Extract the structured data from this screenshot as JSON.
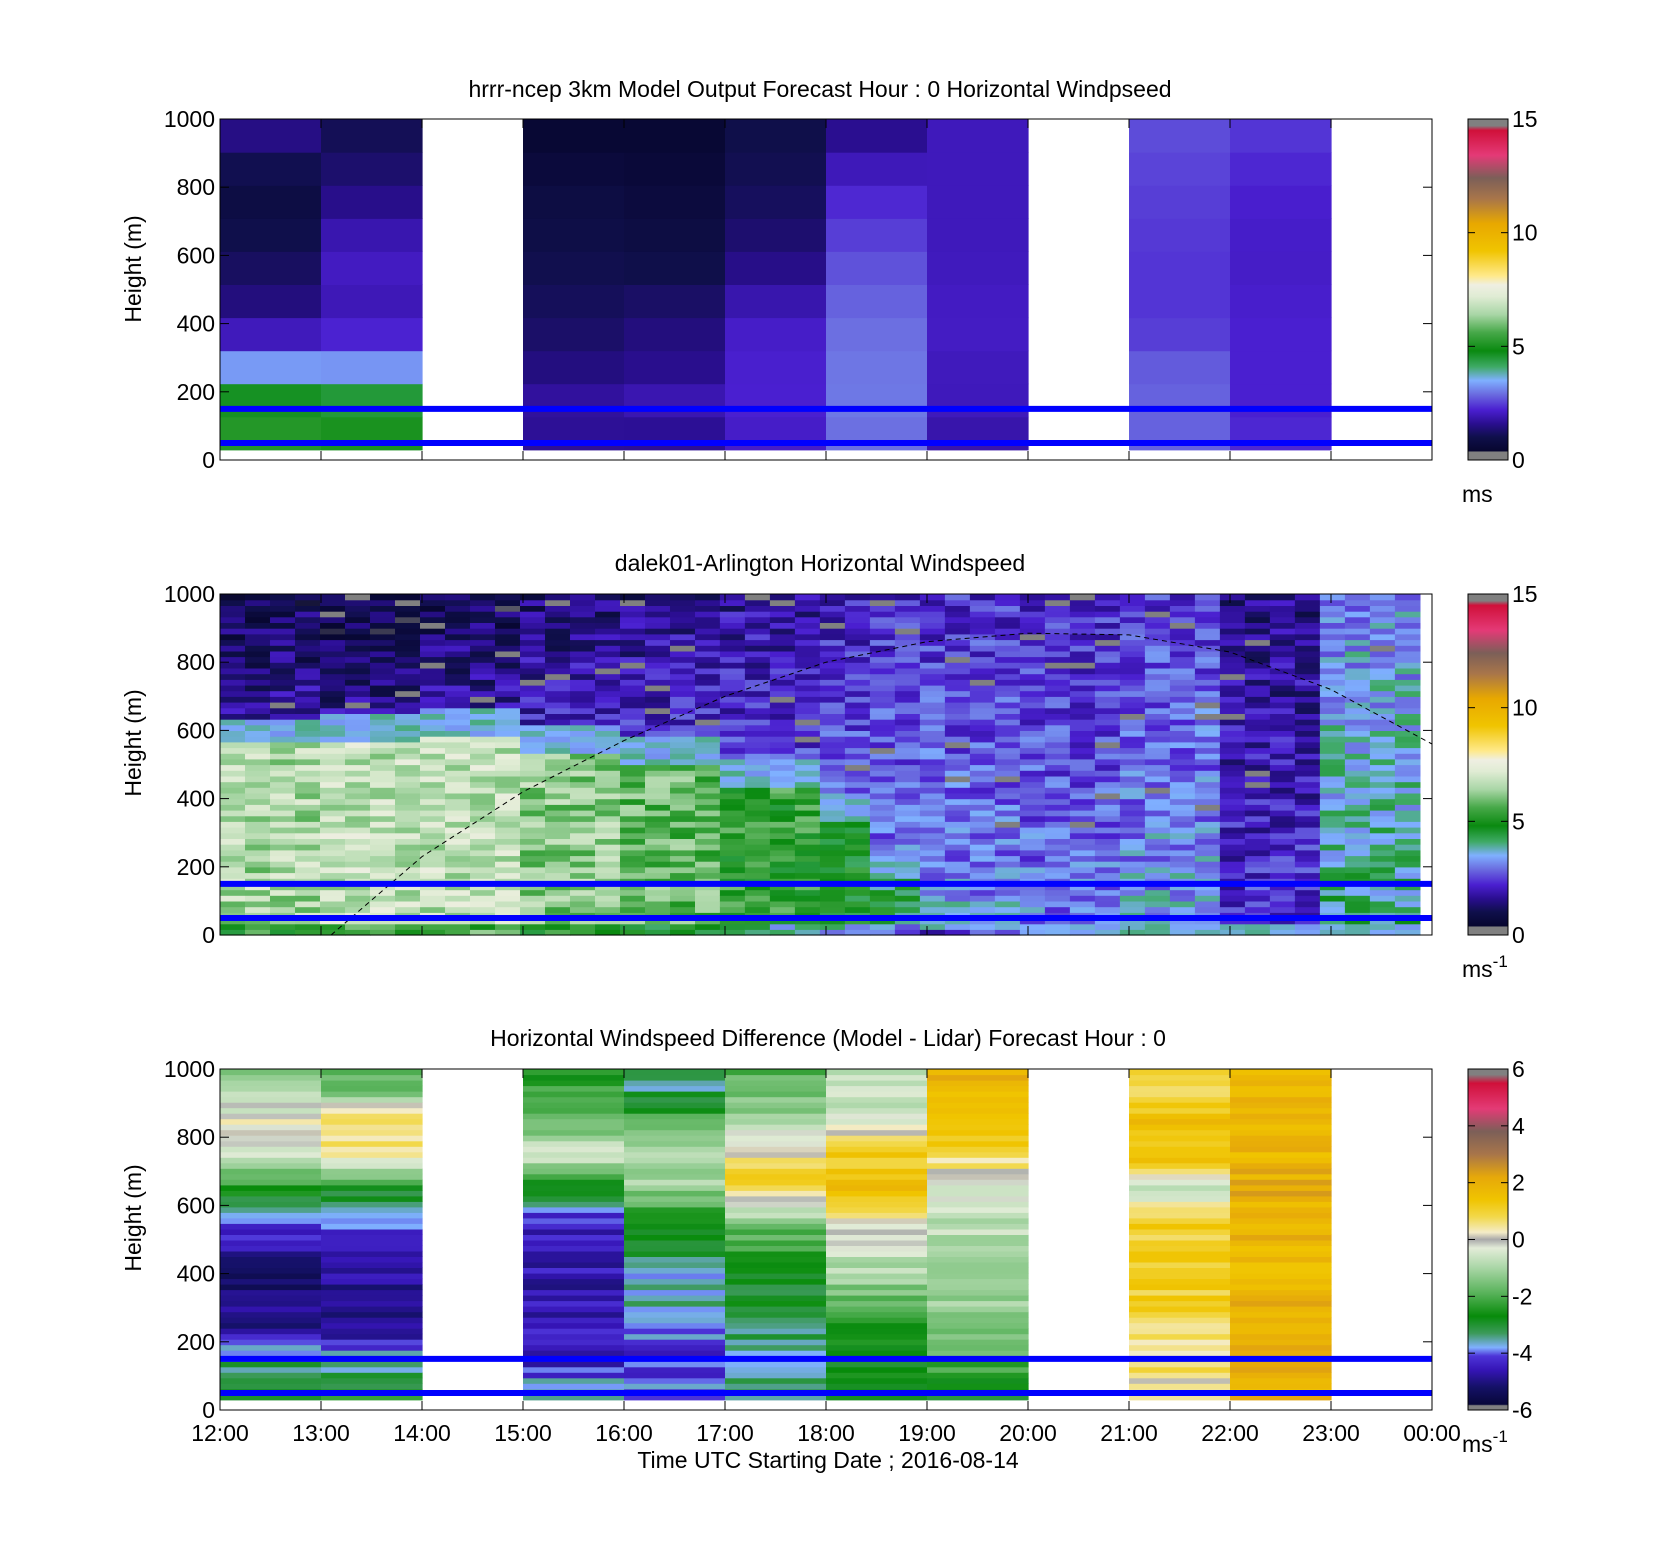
{
  "figure": {
    "xlabel": "Time UTC  Starting Date ; 2016-08-14",
    "xticks": [
      "12:00",
      "13:00",
      "14:00",
      "15:00",
      "16:00",
      "17:00",
      "18:00",
      "19:00",
      "20:00",
      "21:00",
      "22:00",
      "23:00",
      "00:00"
    ],
    "guide_line_color": "#0000ff"
  },
  "chart_data": [
    {
      "id": "model",
      "type": "heatmap",
      "title": "hrrr-ncep 3km Model Output   Forecast Hour : 0 Horizontal Windpseed",
      "ylabel": "Height (m)",
      "yticks": [
        0,
        200,
        400,
        600,
        800,
        1000
      ],
      "ylim": [
        0,
        1000
      ],
      "xlim_hours": [
        12,
        24
      ],
      "colorbar": {
        "min": 0,
        "max": 15,
        "ticks": [
          "0",
          "5",
          "10",
          "15"
        ],
        "unit": "ms"
      },
      "reference_heights_m": [
        150,
        50
      ],
      "height_levels_m": [
        50,
        150,
        250,
        400,
        600,
        800,
        950
      ],
      "columns": [
        {
          "hour": "12:00",
          "windspeed": [
            5.2,
            5.0,
            3.6,
            1.6,
            1.1,
            0.8,
            1.5
          ]
        },
        {
          "hour": "13:00",
          "windspeed": [
            5.1,
            4.8,
            3.5,
            1.9,
            2.1,
            1.4,
            1.1
          ]
        },
        {
          "hour": "14:00",
          "windspeed": null
        },
        {
          "hour": "15:00",
          "windspeed": [
            1.6,
            1.8,
            1.5,
            1.2,
            1.0,
            0.8,
            0.5
          ]
        },
        {
          "hour": "16:00",
          "windspeed": [
            1.5,
            2.0,
            1.6,
            1.4,
            0.9,
            0.7,
            0.5
          ]
        },
        {
          "hour": "17:00",
          "windspeed": [
            2.1,
            2.2,
            2.2,
            2.1,
            1.4,
            1.1,
            1.0
          ]
        },
        {
          "hour": "18:00",
          "windspeed": [
            2.9,
            3.0,
            3.0,
            2.9,
            2.6,
            2.2,
            1.6
          ]
        },
        {
          "hour": "19:00",
          "windspeed": [
            1.8,
            2.0,
            2.0,
            2.1,
            2.0,
            2.0,
            2.0
          ]
        },
        {
          "hour": "20:00",
          "windspeed": null
        },
        {
          "hour": "21:00",
          "windspeed": [
            2.8,
            2.8,
            2.8,
            2.4,
            2.4,
            2.5,
            2.6
          ]
        },
        {
          "hour": "22:00",
          "windspeed": [
            2.3,
            2.2,
            2.2,
            2.2,
            2.1,
            2.2,
            2.4
          ]
        },
        {
          "hour": "23:00",
          "windspeed": null
        }
      ]
    },
    {
      "id": "lidar",
      "type": "heatmap",
      "title": "dalek01-Arlington  Horizontal Windspeed",
      "ylabel": "Height (m)",
      "yticks": [
        0,
        200,
        400,
        600,
        800,
        1000
      ],
      "ylim": [
        0,
        1000
      ],
      "xlim_hours": [
        12,
        24
      ],
      "colorbar": {
        "min": 0,
        "max": 15,
        "ticks": [
          "0",
          "5",
          "10",
          "15"
        ],
        "unit": "ms",
        "unit_sup": "-1"
      },
      "reference_heights_m": [
        150,
        50
      ],
      "boundary_layer_curve": {
        "hours": [
          13.1,
          14,
          15,
          16,
          17,
          18,
          19,
          20,
          21,
          22,
          23,
          24
        ],
        "height_m": [
          0,
          230,
          420,
          570,
          700,
          800,
          860,
          885,
          880,
          830,
          720,
          560
        ]
      },
      "profile_stats": [
        {
          "start_hour": 12.0,
          "top_m": 600,
          "low_speed": 6.5,
          "jet_speed": 1.0
        },
        {
          "start_hour": 13.0,
          "top_m": 610,
          "low_speed": 6.8,
          "jet_speed": 0.8
        },
        {
          "start_hour": 14.0,
          "top_m": 620,
          "low_speed": 6.8,
          "jet_speed": 1.0
        },
        {
          "start_hour": 15.0,
          "top_m": 580,
          "low_speed": 6.2,
          "jet_speed": 1.3
        },
        {
          "start_hour": 16.0,
          "top_m": 540,
          "low_speed": 5.8,
          "jet_speed": 1.5
        },
        {
          "start_hour": 17.0,
          "top_m": 470,
          "low_speed": 5.2,
          "jet_speed": 1.7
        },
        {
          "start_hour": 18.0,
          "top_m": 380,
          "low_speed": 4.8,
          "jet_speed": 2.0
        },
        {
          "start_hour": 18.5,
          "top_m": 200,
          "low_speed": 4.5,
          "jet_speed": 2.2
        },
        {
          "start_hour": 19.0,
          "top_m": 60,
          "low_speed": 3.5,
          "jet_speed": 2.3
        },
        {
          "start_hour": 20.0,
          "top_m": 0,
          "low_speed": 2.5,
          "jet_speed": 2.2
        },
        {
          "start_hour": 21.0,
          "top_m": 0,
          "low_speed": 2.4,
          "jet_speed": 2.5
        },
        {
          "start_hour": 22.0,
          "top_m": 0,
          "low_speed": 1.6,
          "jet_speed": 1.5
        },
        {
          "start_hour": 23.0,
          "top_m": 0,
          "low_speed": 2.8,
          "jet_speed": 3.2
        }
      ]
    },
    {
      "id": "difference",
      "type": "heatmap",
      "title": "Horizontal Windspeed Difference (Model - Lidar) Forecast Hour : 0",
      "ylabel": "Height (m)",
      "yticks": [
        0,
        200,
        400,
        600,
        800,
        1000
      ],
      "ylim": [
        0,
        1000
      ],
      "xlim_hours": [
        12,
        24
      ],
      "colorbar": {
        "min": -6,
        "max": 6,
        "ticks": [
          "-6",
          "-4",
          "-2",
          "0",
          "2",
          "4",
          "6"
        ],
        "unit": "ms",
        "unit_sup": "-1"
      },
      "reference_heights_m": [
        150,
        50
      ],
      "height_levels_m": [
        50,
        150,
        250,
        400,
        550,
        650,
        750,
        850,
        950
      ],
      "columns": [
        {
          "hour": "12:00",
          "difference": [
            -2.5,
            -3.5,
            -5.0,
            -5.3,
            -4.2,
            -2.5,
            -0.5,
            0.2,
            -1.2
          ]
        },
        {
          "hour": "13:00",
          "difference": [
            -2.6,
            -3.8,
            -4.8,
            -4.8,
            -4.2,
            -2.6,
            0.5,
            1.0,
            -1.8
          ]
        },
        {
          "hour": "14:00",
          "difference": null
        },
        {
          "hour": "15:00",
          "difference": [
            -3.5,
            -4.5,
            -4.6,
            -4.6,
            -4.5,
            -3.0,
            -0.5,
            -1.6,
            -2.4
          ]
        },
        {
          "hour": "16:00",
          "difference": [
            -4.0,
            -4.2,
            -3.8,
            -3.5,
            -2.8,
            -1.2,
            -0.8,
            -2.0,
            -3.4
          ]
        },
        {
          "hour": "17:00",
          "difference": [
            -3.5,
            -3.4,
            -3.4,
            -2.6,
            -1.6,
            1.0,
            0.4,
            -1.0,
            -1.8
          ]
        },
        {
          "hour": "18:00",
          "difference": [
            -3.0,
            -2.8,
            -2.5,
            -1.0,
            0.2,
            1.4,
            1.2,
            -0.3,
            -0.8
          ]
        },
        {
          "hour": "19:00",
          "difference": [
            -2.8,
            -2.0,
            -1.2,
            -1.0,
            -0.8,
            -0.6,
            0.8,
            1.6,
            1.8
          ]
        },
        {
          "hour": "20:00",
          "difference": null
        },
        {
          "hour": "21:00",
          "difference": [
            0.4,
            0.6,
            0.8,
            1.2,
            1.0,
            -0.6,
            1.6,
            1.4,
            0.8
          ]
        },
        {
          "hour": "22:00",
          "difference": [
            1.8,
            2.0,
            2.0,
            1.8,
            1.8,
            2.0,
            1.8,
            1.8,
            1.6
          ]
        },
        {
          "hour": "23:00",
          "difference": null
        }
      ]
    }
  ]
}
